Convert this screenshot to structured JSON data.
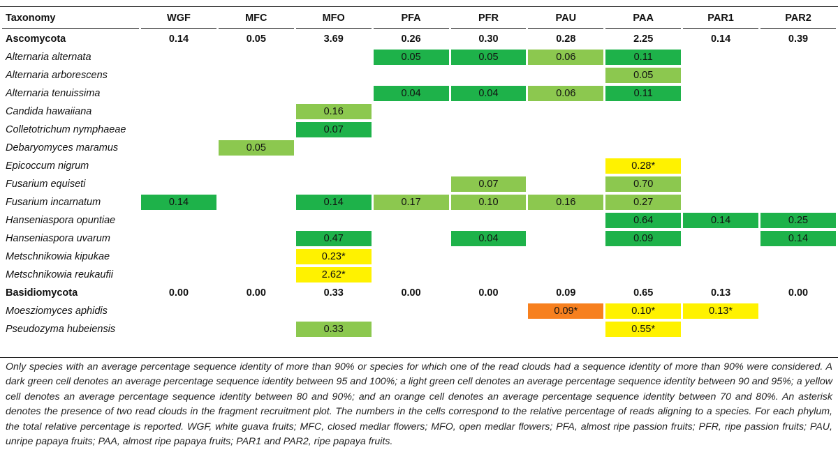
{
  "table": {
    "columns": [
      "Taxonomy",
      "WGF",
      "MFC",
      "MFO",
      "PFA",
      "PFR",
      "PAU",
      "PAA",
      "PAR1",
      "PAR2"
    ],
    "rows": [
      {
        "kind": "phylum",
        "name": "Ascomycota",
        "cells": [
          {
            "v": "0.14"
          },
          {
            "v": "0.05"
          },
          {
            "v": "3.69"
          },
          {
            "v": "0.26"
          },
          {
            "v": "0.30"
          },
          {
            "v": "0.28"
          },
          {
            "v": "2.25"
          },
          {
            "v": "0.14"
          },
          {
            "v": "0.39"
          }
        ]
      },
      {
        "kind": "species",
        "name": "Alternaria alternata",
        "cells": [
          {
            "v": ""
          },
          {
            "v": ""
          },
          {
            "v": ""
          },
          {
            "v": "0.05",
            "c": "dg"
          },
          {
            "v": "0.05",
            "c": "dg"
          },
          {
            "v": "0.06",
            "c": "lg"
          },
          {
            "v": "0.11",
            "c": "dg"
          },
          {
            "v": ""
          },
          {
            "v": ""
          }
        ]
      },
      {
        "kind": "species",
        "name": "Alternaria arborescens",
        "cells": [
          {
            "v": ""
          },
          {
            "v": ""
          },
          {
            "v": ""
          },
          {
            "v": ""
          },
          {
            "v": ""
          },
          {
            "v": ""
          },
          {
            "v": "0.05",
            "c": "lg"
          },
          {
            "v": ""
          },
          {
            "v": ""
          }
        ]
      },
      {
        "kind": "species",
        "name": "Alternaria tenuissima",
        "cells": [
          {
            "v": ""
          },
          {
            "v": ""
          },
          {
            "v": ""
          },
          {
            "v": "0.04",
            "c": "dg"
          },
          {
            "v": "0.04",
            "c": "dg"
          },
          {
            "v": "0.06",
            "c": "lg"
          },
          {
            "v": "0.11",
            "c": "dg"
          },
          {
            "v": ""
          },
          {
            "v": ""
          }
        ]
      },
      {
        "kind": "species",
        "name": "Candida hawaiiana",
        "cells": [
          {
            "v": ""
          },
          {
            "v": ""
          },
          {
            "v": "0.16",
            "c": "lg"
          },
          {
            "v": ""
          },
          {
            "v": ""
          },
          {
            "v": ""
          },
          {
            "v": ""
          },
          {
            "v": ""
          },
          {
            "v": ""
          }
        ]
      },
      {
        "kind": "species",
        "name": "Colletotrichum nymphaeae",
        "cells": [
          {
            "v": ""
          },
          {
            "v": ""
          },
          {
            "v": "0.07",
            "c": "dg"
          },
          {
            "v": ""
          },
          {
            "v": ""
          },
          {
            "v": ""
          },
          {
            "v": ""
          },
          {
            "v": ""
          },
          {
            "v": ""
          }
        ]
      },
      {
        "kind": "species",
        "name": "Debaryomyces maramus",
        "cells": [
          {
            "v": ""
          },
          {
            "v": "0.05",
            "c": "lg"
          },
          {
            "v": ""
          },
          {
            "v": ""
          },
          {
            "v": ""
          },
          {
            "v": ""
          },
          {
            "v": ""
          },
          {
            "v": ""
          },
          {
            "v": ""
          }
        ]
      },
      {
        "kind": "species",
        "name": "Epicoccum nigrum",
        "cells": [
          {
            "v": ""
          },
          {
            "v": ""
          },
          {
            "v": ""
          },
          {
            "v": ""
          },
          {
            "v": ""
          },
          {
            "v": ""
          },
          {
            "v": "0.28*",
            "c": "ye"
          },
          {
            "v": ""
          },
          {
            "v": ""
          }
        ]
      },
      {
        "kind": "species",
        "name": "Fusarium equiseti",
        "cells": [
          {
            "v": ""
          },
          {
            "v": ""
          },
          {
            "v": ""
          },
          {
            "v": ""
          },
          {
            "v": "0.07",
            "c": "lg"
          },
          {
            "v": ""
          },
          {
            "v": "0.70",
            "c": "lg"
          },
          {
            "v": ""
          },
          {
            "v": ""
          }
        ]
      },
      {
        "kind": "species",
        "name": "Fusarium incarnatum",
        "cells": [
          {
            "v": "0.14",
            "c": "dg"
          },
          {
            "v": ""
          },
          {
            "v": "0.14",
            "c": "dg"
          },
          {
            "v": "0.17",
            "c": "lg"
          },
          {
            "v": "0.10",
            "c": "lg"
          },
          {
            "v": "0.16",
            "c": "lg"
          },
          {
            "v": "0.27",
            "c": "lg"
          },
          {
            "v": ""
          },
          {
            "v": ""
          }
        ]
      },
      {
        "kind": "species",
        "name": "Hanseniaspora opuntiae",
        "cells": [
          {
            "v": ""
          },
          {
            "v": ""
          },
          {
            "v": ""
          },
          {
            "v": ""
          },
          {
            "v": ""
          },
          {
            "v": ""
          },
          {
            "v": "0.64",
            "c": "dg"
          },
          {
            "v": "0.14",
            "c": "dg"
          },
          {
            "v": "0.25",
            "c": "dg"
          }
        ]
      },
      {
        "kind": "species",
        "name": "Hanseniaspora uvarum",
        "cells": [
          {
            "v": ""
          },
          {
            "v": ""
          },
          {
            "v": "0.47",
            "c": "dg"
          },
          {
            "v": ""
          },
          {
            "v": "0.04",
            "c": "dg"
          },
          {
            "v": ""
          },
          {
            "v": "0.09",
            "c": "dg"
          },
          {
            "v": ""
          },
          {
            "v": "0.14",
            "c": "dg"
          }
        ]
      },
      {
        "kind": "species",
        "name": "Metschnikowia kipukae",
        "cells": [
          {
            "v": ""
          },
          {
            "v": ""
          },
          {
            "v": "0.23*",
            "c": "ye"
          },
          {
            "v": ""
          },
          {
            "v": ""
          },
          {
            "v": ""
          },
          {
            "v": ""
          },
          {
            "v": ""
          },
          {
            "v": ""
          }
        ]
      },
      {
        "kind": "species",
        "name": "Metschnikowia reukaufii",
        "cells": [
          {
            "v": ""
          },
          {
            "v": ""
          },
          {
            "v": "2.62*",
            "c": "ye"
          },
          {
            "v": ""
          },
          {
            "v": ""
          },
          {
            "v": ""
          },
          {
            "v": ""
          },
          {
            "v": ""
          },
          {
            "v": ""
          }
        ]
      },
      {
        "kind": "phylum",
        "name": "Basidiomycota",
        "cells": [
          {
            "v": "0.00"
          },
          {
            "v": "0.00"
          },
          {
            "v": "0.33"
          },
          {
            "v": "0.00"
          },
          {
            "v": "0.00"
          },
          {
            "v": "0.09"
          },
          {
            "v": "0.65"
          },
          {
            "v": "0.13"
          },
          {
            "v": "0.00"
          }
        ]
      },
      {
        "kind": "species",
        "name": "Moesziomyces aphidis",
        "cells": [
          {
            "v": ""
          },
          {
            "v": ""
          },
          {
            "v": ""
          },
          {
            "v": ""
          },
          {
            "v": ""
          },
          {
            "v": "0.09*",
            "c": "or"
          },
          {
            "v": "0.10*",
            "c": "ye"
          },
          {
            "v": "0.13*",
            "c": "ye"
          },
          {
            "v": ""
          }
        ]
      },
      {
        "kind": "species",
        "name": "Pseudozyma hubeiensis",
        "cells": [
          {
            "v": ""
          },
          {
            "v": ""
          },
          {
            "v": "0.33",
            "c": "lg"
          },
          {
            "v": ""
          },
          {
            "v": ""
          },
          {
            "v": ""
          },
          {
            "v": "0.55*",
            "c": "ye"
          },
          {
            "v": ""
          },
          {
            "v": ""
          }
        ]
      }
    ]
  },
  "colors": {
    "dark_green": "#1eb24a",
    "light_green": "#8cc84f",
    "yellow": "#fff200",
    "orange": "#f7801e"
  },
  "footnote": "Only species with an average percentage sequence identity of more than 90% or species for which one of the read clouds had a sequence identity of more than 90% were considered. A dark green cell denotes an average percentage sequence identity between 95 and 100%; a light green cell denotes an average percentage sequence identity between 90 and 95%; a yellow cell denotes an average percentage sequence identity between 80 and 90%; and an orange cell denotes an average percentage sequence identity between 70 and 80%. An asterisk denotes the presence of two read clouds in the fragment recruitment plot. The numbers in the cells correspond to the relative percentage of reads aligning to a species. For each phylum, the total relative percentage is reported. WGF, white guava fruits; MFC, closed medlar flowers; MFO, open medlar flowers; PFA, almost ripe passion fruits; PFR, ripe passion fruits; PAU, unripe papaya fruits; PAA, almost ripe papaya fruits; PAR1 and PAR2, ripe papaya fruits."
}
